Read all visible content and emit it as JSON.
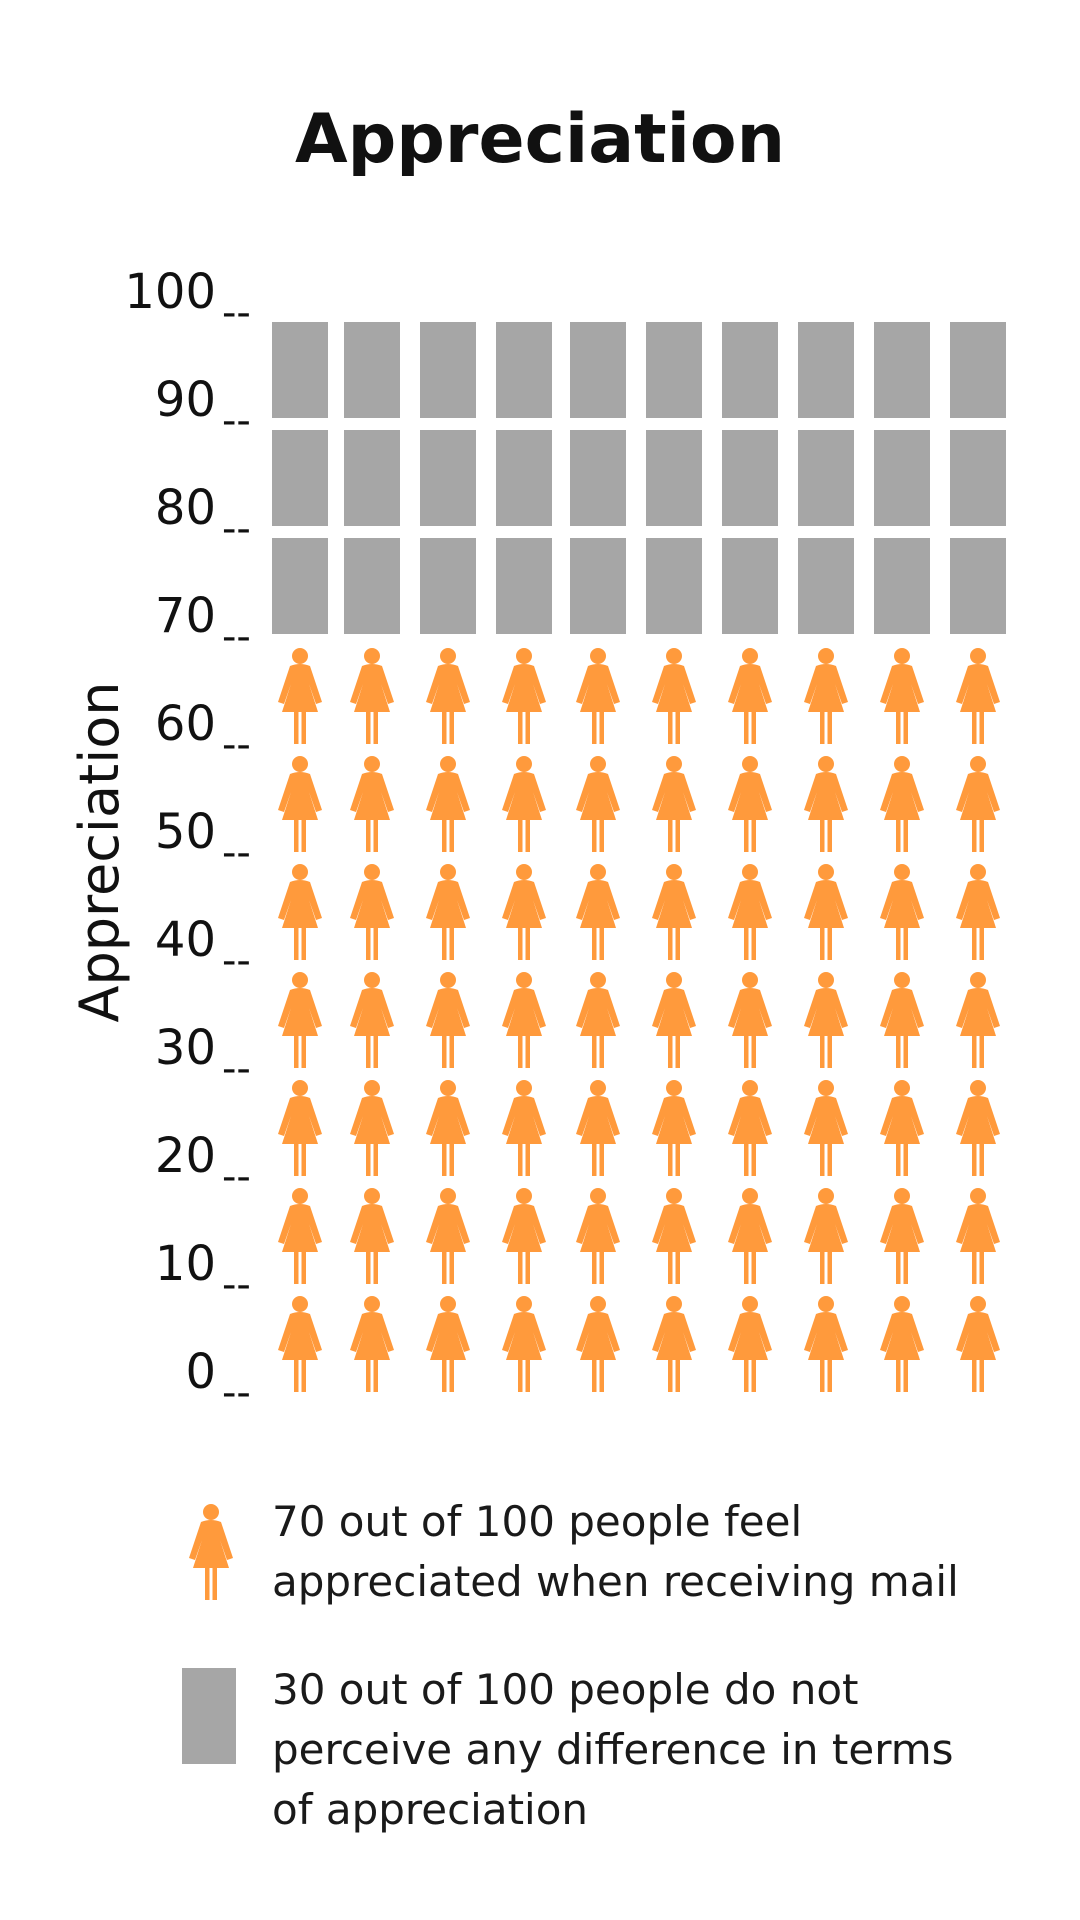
{
  "chart_data": {
    "type": "pictograph",
    "title": "Appreciation",
    "ylabel": "Appreciation",
    "y_ticks": [
      "100",
      "90",
      "80",
      "70",
      "60",
      "50",
      "40",
      "30",
      "20",
      "10",
      "0"
    ],
    "tick_mark": "--",
    "ylim": [
      0,
      100
    ],
    "columns": 10,
    "rows": 10,
    "total": 100,
    "series": [
      {
        "name": "70 out of 100 people feel appreciated when receiving mail",
        "value": 70,
        "icon": "person-woman-icon",
        "color": "#FF9A3C"
      },
      {
        "name": "30 out of 100 people do not perceive any difference in terms of appreciation",
        "value": 30,
        "icon": "rectangle-icon",
        "color": "#A6A6A6"
      }
    ],
    "legend": {
      "position": "bottom",
      "items": [
        {
          "lines": [
            "70 out of 100 people feel",
            "appreciated when receiving mail"
          ]
        },
        {
          "lines": [
            "30 out of 100 people do not",
            "perceive any difference in terms",
            "of appreciation"
          ]
        }
      ]
    }
  }
}
